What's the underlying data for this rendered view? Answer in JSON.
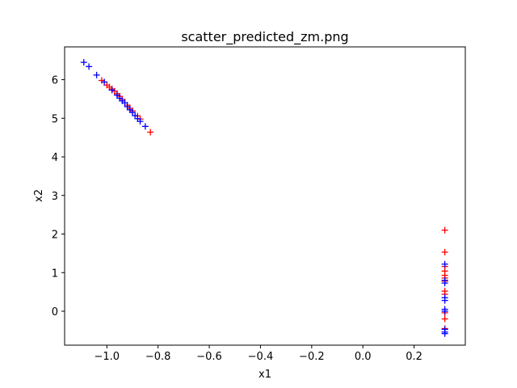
{
  "chart_data": {
    "type": "scatter",
    "title": "scatter_predicted_zm.png",
    "xlabel": "x1",
    "ylabel": "x2",
    "xlim": [
      -1.165,
      0.4
    ],
    "ylim": [
      -0.88,
      6.85
    ],
    "xticks": [
      -1.0,
      -0.8,
      -0.6,
      -0.4,
      -0.2,
      0.0,
      0.2
    ],
    "xtick_labels": [
      "−1.0",
      "−0.8",
      "−0.6",
      "−0.4",
      "−0.2",
      "0.0",
      "0.2"
    ],
    "yticks": [
      0,
      1,
      2,
      3,
      4,
      5,
      6
    ],
    "ytick_labels": [
      "0",
      "1",
      "2",
      "3",
      "4",
      "5",
      "6"
    ],
    "marker": "+",
    "grid": false,
    "series": [
      {
        "name": "red",
        "color": "#ff0000",
        "points": [
          [
            -1.02,
            5.98
          ],
          [
            -1.0,
            5.86
          ],
          [
            -0.99,
            5.81
          ],
          [
            -0.98,
            5.76
          ],
          [
            -0.97,
            5.7
          ],
          [
            -0.96,
            5.64
          ],
          [
            -0.95,
            5.57
          ],
          [
            -0.94,
            5.49
          ],
          [
            -0.92,
            5.34
          ],
          [
            -0.91,
            5.26
          ],
          [
            -0.9,
            5.19
          ],
          [
            -0.88,
            5.06
          ],
          [
            -0.87,
            4.98
          ],
          [
            -0.83,
            4.64
          ],
          [
            0.32,
            2.1
          ],
          [
            0.32,
            1.53
          ],
          [
            0.32,
            1.16
          ],
          [
            0.32,
            1.04
          ],
          [
            0.32,
            0.93
          ],
          [
            0.32,
            0.86
          ],
          [
            0.32,
            0.78
          ],
          [
            0.32,
            0.52
          ],
          [
            0.32,
            0.44
          ],
          [
            0.32,
            -0.04
          ],
          [
            0.32,
            -0.2
          ],
          [
            0.32,
            -0.45
          ]
        ]
      },
      {
        "name": "blue",
        "color": "#0000ff",
        "points": [
          [
            -1.09,
            6.45
          ],
          [
            -1.07,
            6.34
          ],
          [
            -1.04,
            6.12
          ],
          [
            -1.01,
            5.94
          ],
          [
            -0.98,
            5.73
          ],
          [
            -0.96,
            5.6
          ],
          [
            -0.95,
            5.52
          ],
          [
            -0.94,
            5.45
          ],
          [
            -0.93,
            5.4
          ],
          [
            -0.92,
            5.3
          ],
          [
            -0.91,
            5.22
          ],
          [
            -0.9,
            5.15
          ],
          [
            -0.89,
            5.07
          ],
          [
            -0.88,
            4.99
          ],
          [
            -0.87,
            4.92
          ],
          [
            -0.85,
            4.79
          ],
          [
            0.32,
            1.22
          ],
          [
            0.32,
            0.8
          ],
          [
            0.32,
            0.73
          ],
          [
            0.32,
            0.35
          ],
          [
            0.32,
            0.28
          ],
          [
            0.32,
            0.05
          ],
          [
            0.32,
            0.0
          ],
          [
            0.32,
            -0.47
          ],
          [
            0.32,
            -0.54
          ],
          [
            0.32,
            -0.58
          ]
        ]
      }
    ]
  }
}
